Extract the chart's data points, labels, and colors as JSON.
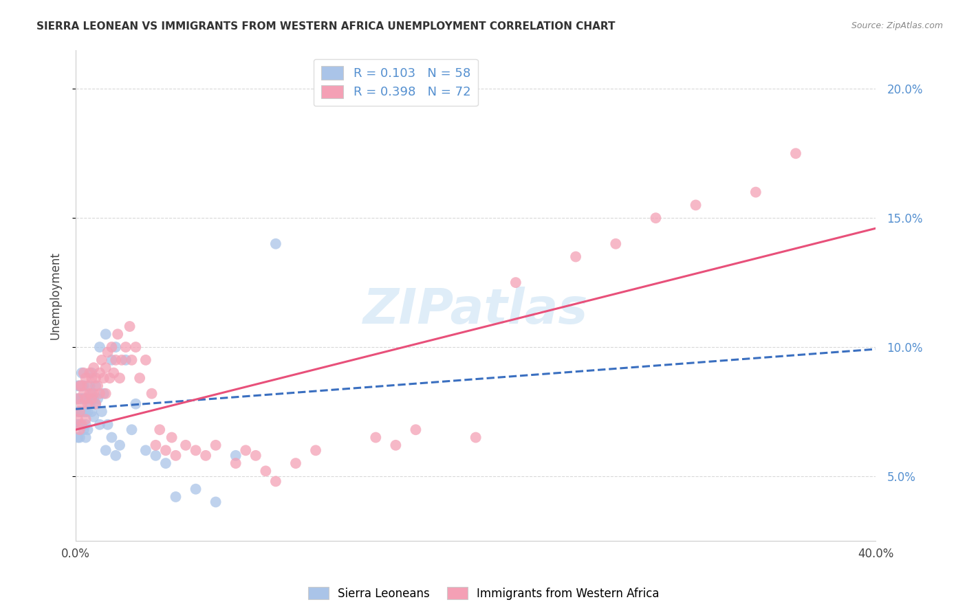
{
  "title": "SIERRA LEONEAN VS IMMIGRANTS FROM WESTERN AFRICA UNEMPLOYMENT CORRELATION CHART",
  "source": "Source: ZipAtlas.com",
  "ylabel": "Unemployment",
  "xlim": [
    0.0,
    0.4
  ],
  "ylim": [
    0.025,
    0.215
  ],
  "yticks": [
    0.05,
    0.1,
    0.15,
    0.2
  ],
  "xticks": [
    0.0,
    0.1,
    0.2,
    0.3,
    0.4
  ],
  "ytick_labels": [
    "5.0%",
    "10.0%",
    "15.0%",
    "20.0%"
  ],
  "xtick_labels": [
    "0.0%",
    "",
    "",
    "",
    "40.0%"
  ],
  "watermark": "ZIPatlas",
  "blue_color": "#aac4e8",
  "pink_color": "#f4a0b5",
  "blue_line_color": "#3a6fc0",
  "pink_line_color": "#e8507a",
  "blue_R": 0.103,
  "pink_R": 0.398,
  "blue_N": 58,
  "pink_N": 72,
  "blue_intercept": 0.076,
  "blue_slope": 0.058,
  "pink_intercept": 0.068,
  "pink_slope": 0.195,
  "blue_points_x": [
    0.001,
    0.001,
    0.001,
    0.001,
    0.001,
    0.002,
    0.002,
    0.002,
    0.002,
    0.002,
    0.003,
    0.003,
    0.003,
    0.003,
    0.004,
    0.004,
    0.004,
    0.004,
    0.005,
    0.005,
    0.005,
    0.005,
    0.006,
    0.006,
    0.006,
    0.007,
    0.007,
    0.008,
    0.008,
    0.008,
    0.009,
    0.009,
    0.01,
    0.01,
    0.011,
    0.012,
    0.013,
    0.014,
    0.015,
    0.016,
    0.018,
    0.02,
    0.022,
    0.025,
    0.028,
    0.03,
    0.035,
    0.04,
    0.045,
    0.05,
    0.06,
    0.07,
    0.08,
    0.1,
    0.012,
    0.015,
    0.018,
    0.02
  ],
  "blue_points_y": [
    0.085,
    0.08,
    0.075,
    0.07,
    0.065,
    0.085,
    0.08,
    0.075,
    0.07,
    0.065,
    0.09,
    0.085,
    0.08,
    0.075,
    0.085,
    0.08,
    0.075,
    0.068,
    0.08,
    0.075,
    0.07,
    0.065,
    0.08,
    0.075,
    0.068,
    0.085,
    0.078,
    0.09,
    0.082,
    0.075,
    0.08,
    0.073,
    0.085,
    0.078,
    0.08,
    0.07,
    0.075,
    0.082,
    0.06,
    0.07,
    0.065,
    0.058,
    0.062,
    0.095,
    0.068,
    0.078,
    0.06,
    0.058,
    0.055,
    0.042,
    0.045,
    0.04,
    0.058,
    0.14,
    0.1,
    0.105,
    0.095,
    0.1
  ],
  "pink_points_x": [
    0.001,
    0.001,
    0.002,
    0.002,
    0.002,
    0.003,
    0.003,
    0.003,
    0.004,
    0.004,
    0.005,
    0.005,
    0.005,
    0.006,
    0.006,
    0.007,
    0.007,
    0.008,
    0.008,
    0.009,
    0.009,
    0.01,
    0.01,
    0.011,
    0.012,
    0.012,
    0.013,
    0.014,
    0.015,
    0.015,
    0.016,
    0.017,
    0.018,
    0.019,
    0.02,
    0.021,
    0.022,
    0.023,
    0.025,
    0.027,
    0.028,
    0.03,
    0.032,
    0.035,
    0.038,
    0.04,
    0.042,
    0.045,
    0.048,
    0.05,
    0.055,
    0.06,
    0.065,
    0.07,
    0.08,
    0.085,
    0.09,
    0.095,
    0.1,
    0.11,
    0.12,
    0.15,
    0.16,
    0.17,
    0.2,
    0.22,
    0.25,
    0.27,
    0.29,
    0.31,
    0.34,
    0.36
  ],
  "pink_points_y": [
    0.08,
    0.072,
    0.085,
    0.075,
    0.068,
    0.085,
    0.078,
    0.07,
    0.09,
    0.082,
    0.088,
    0.08,
    0.072,
    0.085,
    0.078,
    0.09,
    0.082,
    0.088,
    0.08,
    0.092,
    0.082,
    0.088,
    0.078,
    0.085,
    0.09,
    0.082,
    0.095,
    0.088,
    0.092,
    0.082,
    0.098,
    0.088,
    0.1,
    0.09,
    0.095,
    0.105,
    0.088,
    0.095,
    0.1,
    0.108,
    0.095,
    0.1,
    0.088,
    0.095,
    0.082,
    0.062,
    0.068,
    0.06,
    0.065,
    0.058,
    0.062,
    0.06,
    0.058,
    0.062,
    0.055,
    0.06,
    0.058,
    0.052,
    0.048,
    0.055,
    0.06,
    0.065,
    0.062,
    0.068,
    0.065,
    0.125,
    0.135,
    0.14,
    0.15,
    0.155,
    0.16,
    0.175
  ],
  "background_color": "#ffffff",
  "grid_color": "#d0d0d0",
  "axis_label_color": "#5590d0",
  "title_fontsize": 11,
  "legend_R_color": "#5590d0",
  "legend_N_color": "#e85080"
}
